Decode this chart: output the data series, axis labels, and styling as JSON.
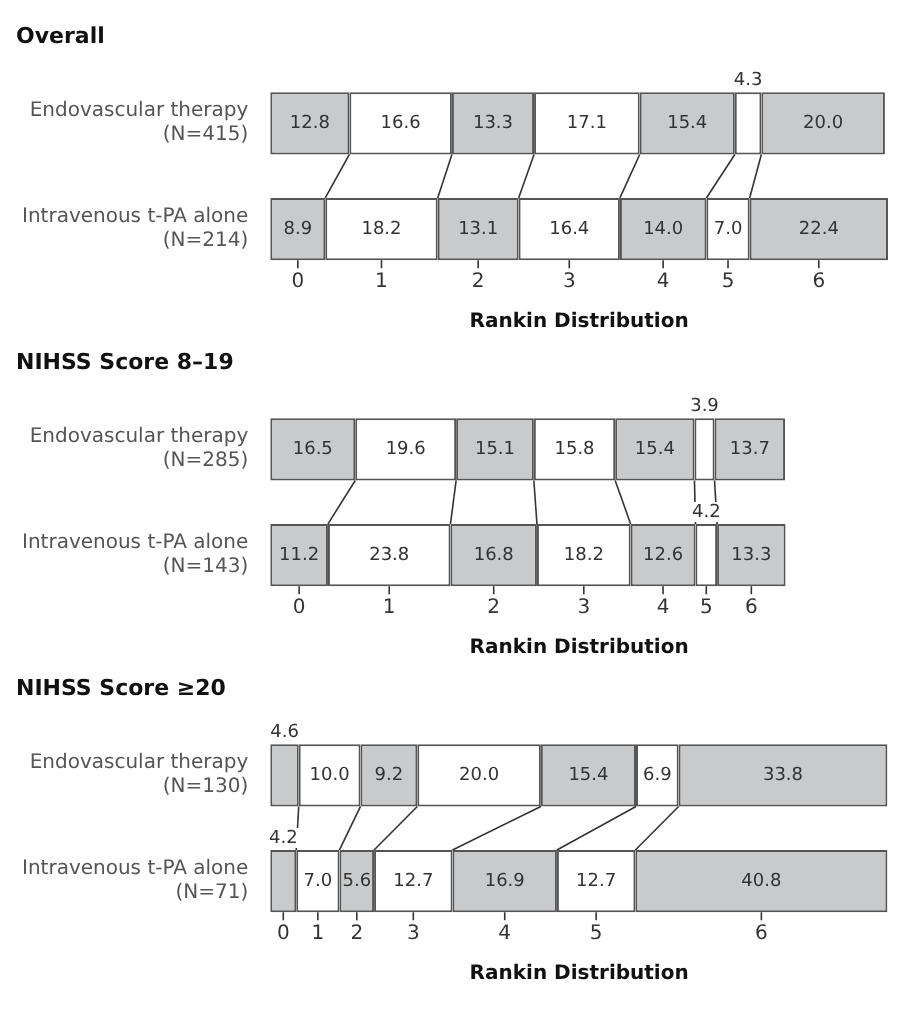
{
  "chart_data": [
    {
      "type": "bar",
      "title": "Overall",
      "orientation": "horizontal",
      "stacked": true,
      "categories": [
        "Endovascular therapy (N=415)",
        "Intravenous t-PA alone (N=214)"
      ],
      "xlabel": "Rankin Distribution",
      "tick_labels": "y",
      "legend": false,
      "grid": false,
      "series": [
        {
          "name": "0",
          "color": "#c9cacc",
          "values": [
            12.8,
            8.9
          ],
          "value_labels": [
            "12.8",
            "8.9"
          ]
        },
        {
          "name": "1",
          "color": "#ffffff",
          "values": [
            16.6,
            18.2
          ],
          "value_labels": [
            "16.6",
            "18.2"
          ]
        },
        {
          "name": "2",
          "color": "#c9cacc",
          "values": [
            13.3,
            13.1
          ],
          "value_labels": [
            "13.3",
            "13.1"
          ]
        },
        {
          "name": "3",
          "color": "#ffffff",
          "values": [
            17.1,
            16.4
          ],
          "value_labels": [
            "17.1",
            "16.4"
          ]
        },
        {
          "name": "4",
          "color": "#c9cacc",
          "values": [
            15.4,
            14.0
          ],
          "value_labels": [
            "15.4",
            "14.0"
          ]
        },
        {
          "name": "5",
          "color": "#ffffff",
          "values": [
            4.3,
            7.0
          ],
          "value_labels": [
            "4.3",
            "7.0"
          ]
        },
        {
          "name": "6",
          "color": "#c9cacc",
          "values": [
            20.0,
            22.4
          ],
          "value_labels": [
            "20.0",
            "22.4"
          ]
        }
      ]
    },
    {
      "type": "bar",
      "title": "NIHSS Score 8–19",
      "orientation": "horizontal",
      "stacked": true,
      "categories": [
        "Endovascular therapy (N=285)",
        "Intravenous t-PA alone (N=143)"
      ],
      "xlabel": "Rankin Distribution",
      "tick_labels": "y",
      "legend": false,
      "grid": false,
      "series": [
        {
          "name": "0",
          "color": "#c9cacc",
          "values": [
            16.5,
            11.2
          ],
          "value_labels": [
            "16.5",
            "11.2"
          ]
        },
        {
          "name": "1",
          "color": "#ffffff",
          "values": [
            19.6,
            23.8
          ],
          "value_labels": [
            "19.6",
            "23.8"
          ]
        },
        {
          "name": "2",
          "color": "#c9cacc",
          "values": [
            15.1,
            16.8
          ],
          "value_labels": [
            "15.1",
            "16.8"
          ]
        },
        {
          "name": "3",
          "color": "#ffffff",
          "values": [
            15.8,
            18.2
          ],
          "value_labels": [
            "15.8",
            "18.2"
          ]
        },
        {
          "name": "4",
          "color": "#c9cacc",
          "values": [
            15.4,
            12.6
          ],
          "value_labels": [
            "15.4",
            "12.6"
          ]
        },
        {
          "name": "5",
          "color": "#ffffff",
          "values": [
            3.9,
            4.2
          ],
          "value_labels": [
            "3.9",
            "4.2"
          ]
        },
        {
          "name": "6",
          "color": "#c9cacc",
          "values": [
            13.7,
            13.3
          ],
          "value_labels": [
            "13.7",
            "13.3"
          ]
        }
      ]
    },
    {
      "type": "bar",
      "title": "NIHSS Score ≥20",
      "orientation": "horizontal",
      "stacked": true,
      "categories": [
        "Endovascular therapy (N=130)",
        "Intravenous t-PA alone (N=71)"
      ],
      "xlabel": "Rankin Distribution",
      "tick_labels": "y",
      "legend": false,
      "grid": false,
      "series": [
        {
          "name": "0",
          "color": "#c9cacc",
          "values": [
            4.6,
            4.2
          ],
          "value_labels": [
            "4.6",
            "4.2"
          ]
        },
        {
          "name": "1",
          "color": "#ffffff",
          "values": [
            10.0,
            7.0
          ],
          "value_labels": [
            "10.0",
            "7.0"
          ]
        },
        {
          "name": "2",
          "color": "#c9cacc",
          "values": [
            9.2,
            5.6
          ],
          "value_labels": [
            "9.2",
            "5.6"
          ]
        },
        {
          "name": "3",
          "color": "#ffffff",
          "values": [
            20.0,
            12.7
          ],
          "value_labels": [
            "20.0",
            "12.7"
          ]
        },
        {
          "name": "4",
          "color": "#c9cacc",
          "values": [
            15.4,
            16.9
          ],
          "value_labels": [
            "15.4",
            "16.9"
          ]
        },
        {
          "name": "5",
          "color": "#ffffff",
          "values": [
            6.9,
            12.7
          ],
          "value_labels": [
            "6.9",
            "12.7"
          ]
        },
        {
          "name": "6",
          "color": "#c9cacc",
          "values": [
            33.8,
            40.8
          ],
          "value_labels": [
            "33.8",
            "40.8"
          ]
        }
      ]
    }
  ]
}
